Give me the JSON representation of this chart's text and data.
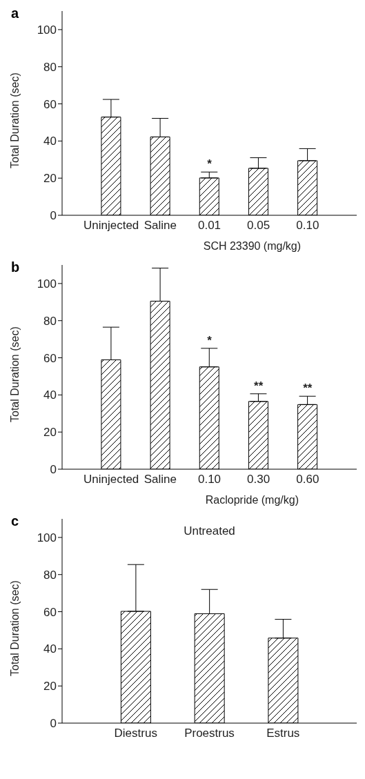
{
  "chart_data": [
    {
      "type": "bar",
      "title": "a",
      "ylabel": "Total Duration (sec)",
      "xlabel": "SCH 23390 (mg/kg)",
      "categories": [
        "Uninjected",
        "Saline",
        "0.01",
        "0.05",
        "0.10"
      ],
      "values": [
        52.9,
        42.2,
        20.1,
        25.3,
        29.4
      ],
      "errors": [
        [
          52.9,
          62.4
        ],
        [
          42.2,
          52.2
        ],
        [
          20.1,
          23.3
        ],
        [
          25.3,
          31.0
        ],
        [
          29.4,
          35.9
        ]
      ],
      "color": "#000000",
      "ylim": [
        0,
        110
      ],
      "yticks": [
        0,
        20,
        40,
        60,
        80,
        100
      ],
      "grid": false,
      "legend": false,
      "annotations": [
        {
          "text": "*",
          "x": "0.01",
          "y": 23.3
        }
      ]
    },
    {
      "type": "bar",
      "title": "b",
      "ylabel": "Total Duration (sec)",
      "xlabel": "Raclopride (mg/kg)",
      "categories": [
        "Uninjected",
        "Saline",
        "0.10",
        "0.30",
        "0.60"
      ],
      "values": [
        58.9,
        90.5,
        55.1,
        36.5,
        34.8
      ],
      "errors": [
        [
          58.9,
          76.5
        ],
        [
          90.5,
          108.3
        ],
        [
          55.1,
          65.1
        ],
        [
          36.5,
          40.6
        ],
        [
          34.8,
          39.3
        ]
      ],
      "color": "#000000",
      "ylim": [
        0,
        110
      ],
      "yticks": [
        0,
        20,
        40,
        60,
        80,
        100
      ],
      "grid": false,
      "legend": false,
      "annotations": [
        {
          "text": "*",
          "x": "0.10",
          "y": 65.1
        },
        {
          "text": "**",
          "x": "0.30",
          "y": 40.6
        },
        {
          "text": "**",
          "x": "0.60",
          "y": 39.3
        }
      ]
    },
    {
      "type": "bar",
      "title": "c",
      "ylabel": "Total Duration (sec)",
      "categories": [
        "Diestrus",
        "Proestrus",
        "Estrus"
      ],
      "values": [
        60.2,
        58.9,
        45.8
      ],
      "errors": [
        [
          60.2,
          85.4
        ],
        [
          58.9,
          72.0
        ],
        [
          45.8,
          55.9
        ]
      ],
      "color": "#000000",
      "ylim": [
        0,
        110
      ],
      "yticks": [
        0,
        20,
        40,
        60,
        80,
        100
      ],
      "grid": false,
      "legend": false,
      "annotations": [
        "Untreated"
      ]
    }
  ]
}
